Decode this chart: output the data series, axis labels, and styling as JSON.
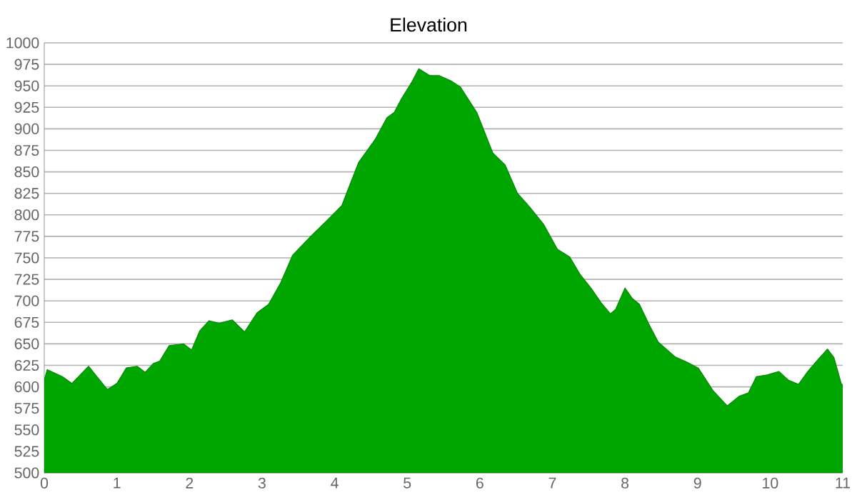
{
  "chart_data": {
    "type": "area",
    "title": "Elevation",
    "color": "#00a600",
    "grid": "y",
    "xlim": [
      0,
      11
    ],
    "xticks": [
      0,
      1,
      2,
      3,
      4,
      5,
      6,
      7,
      8,
      9,
      10,
      11
    ],
    "ylim": [
      500,
      1000
    ],
    "yticks": [
      500,
      525,
      550,
      575,
      600,
      625,
      650,
      675,
      700,
      725,
      750,
      775,
      800,
      825,
      850,
      875,
      900,
      925,
      950,
      975,
      1000
    ],
    "x": [
      0,
      0.04,
      0.25,
      0.38,
      0.61,
      0.87,
      1.0,
      1.13,
      1.28,
      1.39,
      1.5,
      1.59,
      1.72,
      1.92,
      2.03,
      2.14,
      2.27,
      2.41,
      2.59,
      2.76,
      2.93,
      3.09,
      3.25,
      3.42,
      3.5,
      3.67,
      3.9,
      4.1,
      4.2,
      4.33,
      4.56,
      4.72,
      4.82,
      4.92,
      5.06,
      5.16,
      5.31,
      5.44,
      5.6,
      5.73,
      5.96,
      6.18,
      6.35,
      6.52,
      6.68,
      6.88,
      7.07,
      7.24,
      7.38,
      7.54,
      7.67,
      7.8,
      7.87,
      8.0,
      8.1,
      8.2,
      8.33,
      8.46,
      8.69,
      8.85,
      9.01,
      9.21,
      9.41,
      9.57,
      9.7,
      9.81,
      9.96,
      10.12,
      10.25,
      10.39,
      10.52,
      10.65,
      10.79,
      10.88,
      10.98,
      11
    ],
    "values": [
      608,
      620,
      612,
      604,
      624,
      597,
      604,
      622,
      624,
      617,
      627,
      630,
      648,
      650,
      643,
      665,
      677,
      674,
      678,
      664,
      686,
      696,
      720,
      753,
      760,
      775,
      794,
      811,
      833,
      861,
      888,
      913,
      919,
      935,
      954,
      970,
      962,
      962,
      956,
      949,
      919,
      872,
      858,
      825,
      810,
      789,
      760,
      751,
      731,
      714,
      698,
      685,
      690,
      715,
      703,
      696,
      673,
      652,
      635,
      629,
      622,
      596,
      578,
      589,
      593,
      612,
      614,
      618,
      608,
      603,
      618,
      631,
      644,
      634,
      604,
      602
    ]
  }
}
